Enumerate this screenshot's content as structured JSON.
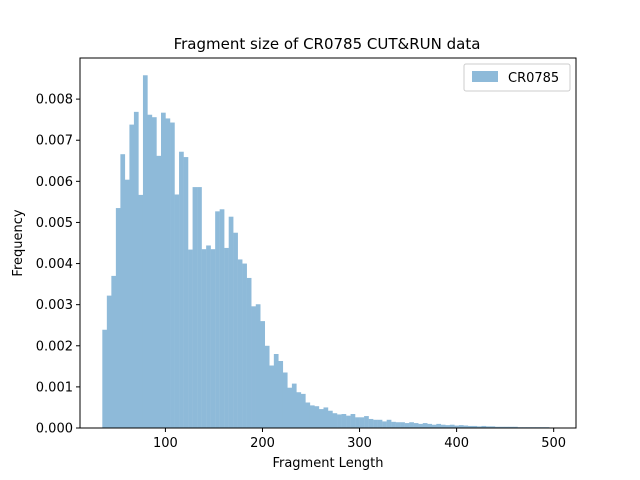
{
  "chart_data": {
    "type": "bar",
    "title": "Fragment size of CR0785 CUT&RUN data",
    "xlabel": "Fragment Length",
    "ylabel": "Frequency",
    "xlim": [
      12,
      523
    ],
    "ylim": [
      0,
      0.009
    ],
    "xticks": [
      100,
      200,
      300,
      400,
      500
    ],
    "xtick_labels": [
      "100",
      "200",
      "300",
      "400",
      "500"
    ],
    "yticks": [
      0,
      0.001,
      0.002,
      0.003,
      0.004,
      0.005,
      0.006,
      0.007,
      0.008
    ],
    "ytick_labels": [
      "0.000",
      "0.001",
      "0.002",
      "0.003",
      "0.004",
      "0.005",
      "0.006",
      "0.007",
      "0.008"
    ],
    "legend": {
      "label": "CR0785",
      "position": "top-right"
    },
    "bar_color": "#8ebad9",
    "bin_start": 35,
    "bin_width": 4.65,
    "series": [
      {
        "name": "CR0785",
        "values": [
          0.00239,
          0.00322,
          0.0037,
          0.00535,
          0.00666,
          0.00604,
          0.00738,
          0.00769,
          0.00567,
          0.00858,
          0.00762,
          0.00756,
          0.00662,
          0.00767,
          0.00753,
          0.00743,
          0.00568,
          0.00672,
          0.00659,
          0.00434,
          0.00586,
          0.00586,
          0.00435,
          0.00444,
          0.00435,
          0.00527,
          0.00532,
          0.00438,
          0.00514,
          0.00475,
          0.0041,
          0.004,
          0.00365,
          0.00296,
          0.00301,
          0.0026,
          0.002,
          0.00152,
          0.0018,
          0.00163,
          0.00135,
          0.00098,
          0.00108,
          0.00087,
          0.00083,
          0.00062,
          0.00055,
          0.00053,
          0.00046,
          0.0005,
          0.00042,
          0.00036,
          0.00033,
          0.00034,
          0.0003,
          0.00034,
          0.00026,
          0.00026,
          0.00029,
          0.00022,
          0.0002,
          0.0002,
          0.00016,
          0.0002,
          0.00015,
          0.00014,
          0.00014,
          0.00012,
          0.00014,
          0.00012,
          0.0001,
          0.00012,
          0.0001,
          8e-05,
          0.0001,
          8e-05,
          7e-05,
          8e-05,
          6e-05,
          7e-05,
          6e-05,
          5e-05,
          5e-05,
          4e-05,
          5e-05,
          4e-05,
          4e-05,
          3e-05,
          3e-05,
          3e-05,
          3e-05,
          3e-05,
          2e-05,
          2e-05,
          2e-05,
          2e-05,
          2e-05,
          2e-05,
          2e-05,
          1e-05
        ]
      }
    ]
  }
}
